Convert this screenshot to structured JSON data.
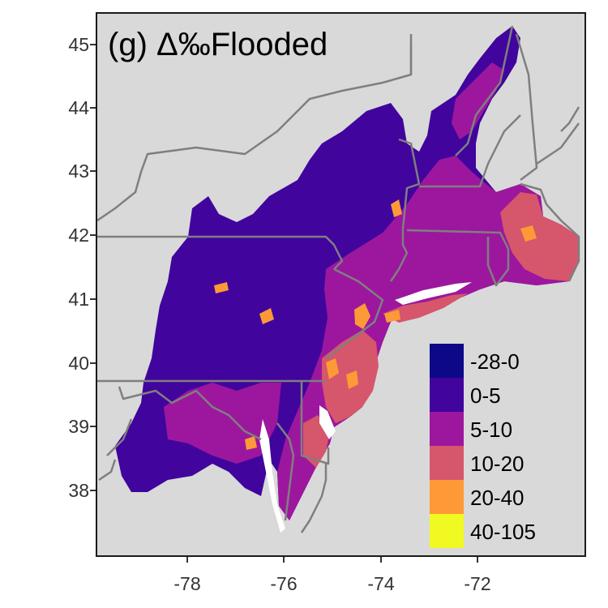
{
  "title": "(g) Δ‰Flooded",
  "axes": {
    "y_ticks": [
      "45",
      "44",
      "43",
      "42",
      "41",
      "40",
      "39",
      "38"
    ],
    "x_ticks": [
      "-78",
      "-76",
      "-74",
      "-72"
    ]
  },
  "legend": {
    "items": [
      {
        "label": "-28-0",
        "color": "#0d0887"
      },
      {
        "label": "0-5",
        "color": "#41049d"
      },
      {
        "label": "5-10",
        "color": "#9c179e"
      },
      {
        "label": "10-20",
        "color": "#d6566b"
      },
      {
        "label": "20-40",
        "color": "#fd9a37"
      },
      {
        "label": "40-105",
        "color": "#f0f921"
      }
    ]
  },
  "colors": {
    "background": "#d9d9d9",
    "boundary": "#7f7f7f",
    "water": "#ffffff"
  }
}
